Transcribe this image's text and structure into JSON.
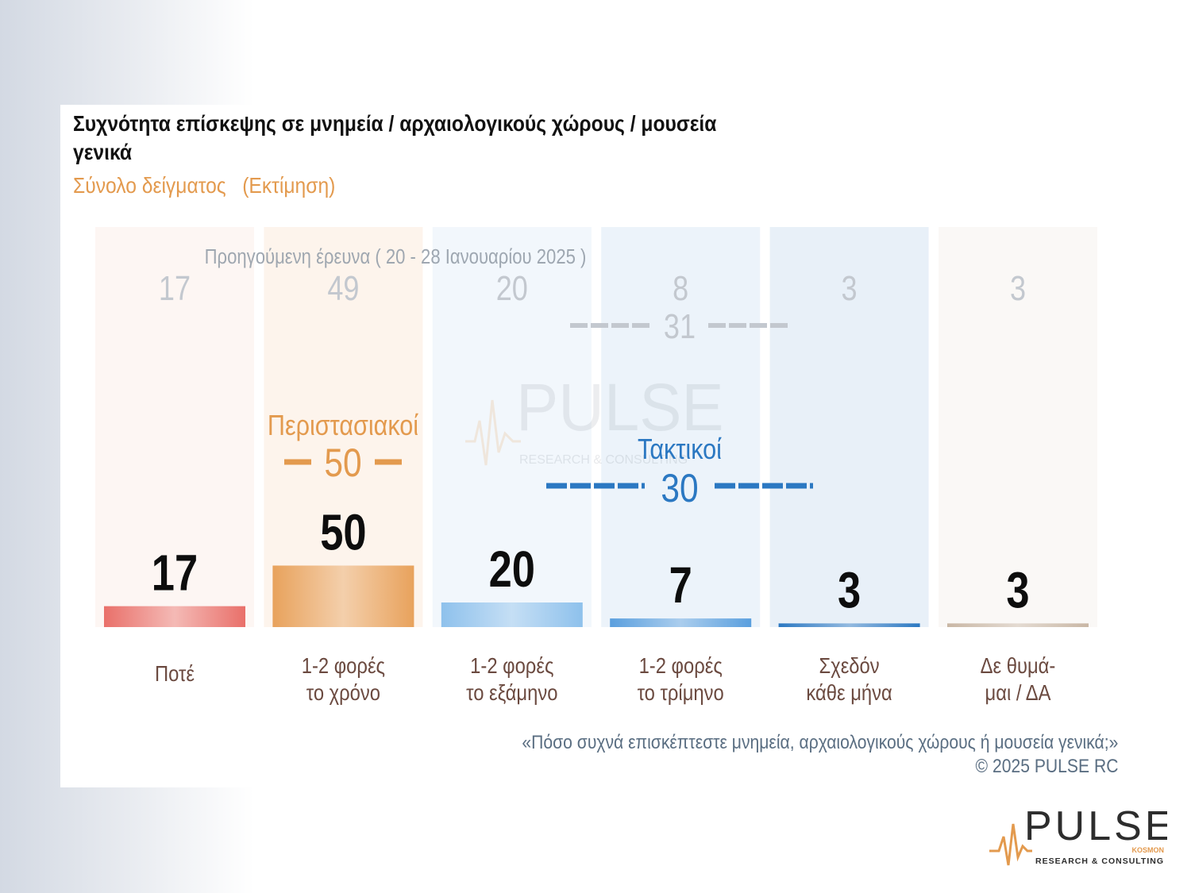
{
  "title": "Συχνότητα επίσκεψης σε μνημεία / αρχαιολογικούς χώρους / μουσεία γενικά",
  "subtitle": "Σύνολο δείγματος   (Εκτίμηση)",
  "footer": {
    "question": "«Πόσο συχνά επισκέπτεστε μνημεία, αρχαιολογικούς χώρους ή μουσεία γενικά;»",
    "copyright": "©  2025  PULSE RC"
  },
  "watermark": {
    "brand": "PULSE",
    "tagline": "RESEARCH & CONSULTING"
  },
  "logo": {
    "brand": "PULSE",
    "sub": "KOSMON",
    "tagline": "RESEARCH & CONSULTING"
  },
  "colors": {
    "orange": "#e39a4e",
    "blue": "#2b78c2",
    "prev": "#c3c8cf",
    "brown": "#6b4a40"
  },
  "chart_data": {
    "type": "bar",
    "categories": [
      "Ποτέ",
      "1-2 φορές\nτο χρόνο",
      "1-2 φορές\nτο εξάμηνο",
      "1-2 φορές\nτο τρίμηνο",
      "Σχεδόν\nκάθε μήνα",
      "Δε θυμά-\nμαι / ΔΑ"
    ],
    "series": [
      {
        "name": "Εκτίμηση",
        "values": [
          17,
          50,
          20,
          7,
          3,
          3
        ]
      },
      {
        "name": "Προηγούμενη έρευνα ( 20 - 28 Ιανουαρίου 2025 )",
        "values": [
          17,
          49,
          20,
          8,
          3,
          3
        ]
      }
    ],
    "groups": [
      {
        "name": "Περιστασιακοί",
        "value": 50,
        "prev_value": null
      },
      {
        "name": "Τακτικοί",
        "value": 30,
        "prev_value": 31
      }
    ],
    "bar_colors": [
      "#e9706a",
      "#e8a25c",
      "#8ec1ec",
      "#5a9fde",
      "#2b78c2",
      "#c9b7a5"
    ],
    "column_colors": [
      "#fdf6f3",
      "#fdf4ec",
      "#f2f7fc",
      "#ecf3fa",
      "#e8f0f8",
      "#faf8f6"
    ],
    "ylim": [
      0,
      100
    ]
  }
}
